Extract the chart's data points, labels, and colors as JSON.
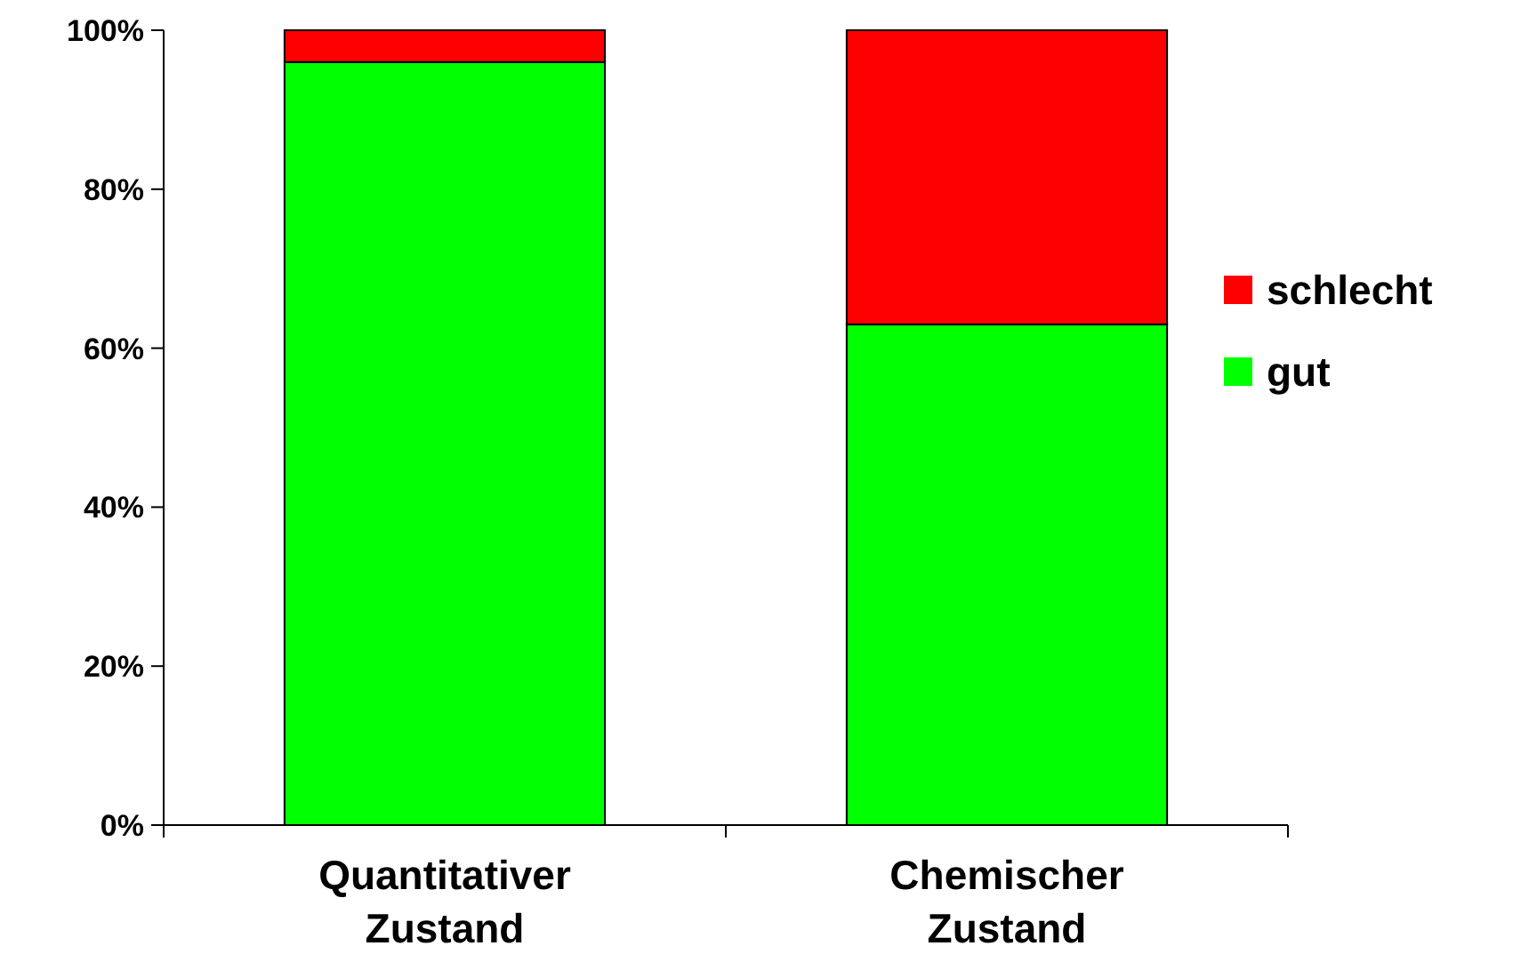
{
  "chart_data": {
    "type": "bar",
    "stacked": true,
    "categories": [
      "Quantitativer Zustand",
      "Chemischer Zustand"
    ],
    "series": [
      {
        "name": "gut",
        "color": "#00ff00",
        "values": [
          96,
          63
        ]
      },
      {
        "name": "schlecht",
        "color": "#ff0000",
        "values": [
          4,
          37
        ]
      }
    ],
    "ylim": [
      0,
      100
    ],
    "yticks": [
      {
        "value": 0,
        "label": "0%"
      },
      {
        "value": 20,
        "label": "20%"
      },
      {
        "value": 40,
        "label": "40%"
      },
      {
        "value": 60,
        "label": "60%"
      },
      {
        "value": 80,
        "label": "80%"
      },
      {
        "value": 100,
        "label": "100%"
      }
    ],
    "grid": false,
    "legend": "right"
  }
}
